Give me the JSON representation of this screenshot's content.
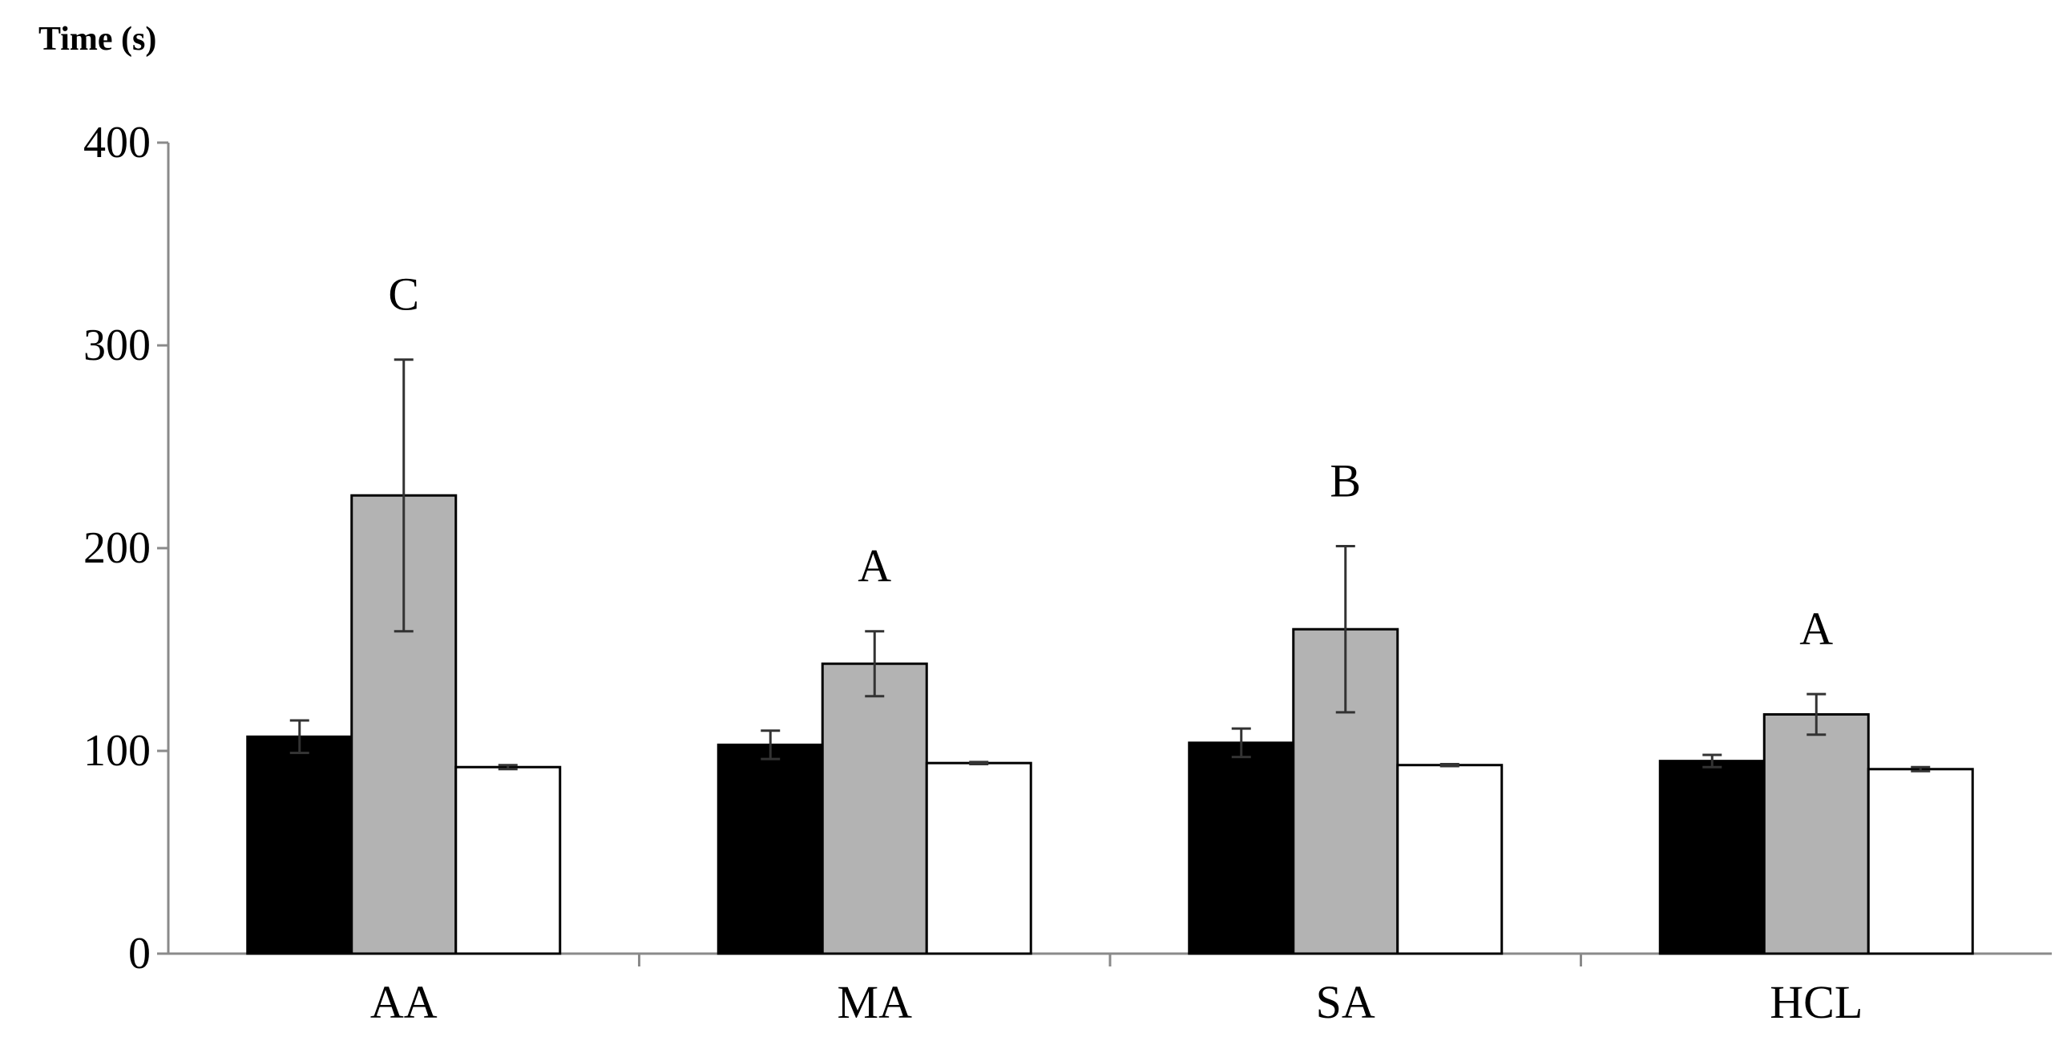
{
  "chart_data": {
    "type": "bar",
    "ylabel": "Time (s)",
    "xlabel": "",
    "ylim": [
      0,
      400
    ],
    "yticks": [
      0,
      100,
      200,
      300,
      400
    ],
    "categories": [
      "AA",
      "MA",
      "SA",
      "HCL"
    ],
    "series": [
      {
        "color": "#000000",
        "values": [
          107,
          103,
          104,
          95
        ],
        "errors": [
          8,
          7,
          7,
          3
        ]
      },
      {
        "color": "#b3b3b3",
        "values": [
          226,
          143,
          160,
          118
        ],
        "errors": [
          67,
          16,
          41,
          10
        ]
      },
      {
        "color": "#ffffff",
        "values": [
          92,
          94,
          93,
          91
        ],
        "errors": [
          1,
          0.5,
          0.5,
          1
        ]
      }
    ],
    "annotations": [
      "C",
      "A",
      "B",
      "A"
    ],
    "legend": "none",
    "grid": false
  }
}
